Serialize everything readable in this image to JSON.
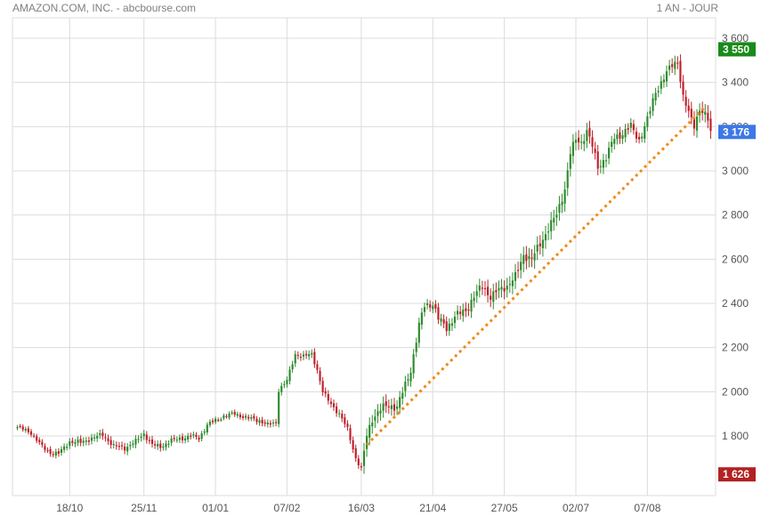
{
  "header": {
    "left_label": "AMAZON.COM, INC. - abcbourse.com",
    "right_label": "1 AN - JOUR"
  },
  "colors": {
    "up": "#2e8b2e",
    "down": "#c0202a",
    "grid": "#dcdcdc",
    "trend": "#f08a1c",
    "badge_high": "#1a8a1a",
    "badge_last": "#3c78e6",
    "badge_low": "#b22222"
  },
  "chart_data": {
    "type": "candlestick",
    "title": "",
    "ylim": [
      1530,
      3640
    ],
    "y_ticks": [
      1800,
      2000,
      2200,
      2400,
      2600,
      2800,
      3000,
      3200,
      3400,
      3600
    ],
    "y_tick_labels": [
      "1 800",
      "2 000",
      "2 200",
      "2 400",
      "2 600",
      "2 800",
      "3 000",
      "3 200",
      "3 400",
      "3 600"
    ],
    "x_ticks": [
      {
        "label": "18/10",
        "index": 19
      },
      {
        "label": "25/11",
        "index": 46
      },
      {
        "label": "01/01",
        "index": 72
      },
      {
        "label": "07/02",
        "index": 98
      },
      {
        "label": "16/03",
        "index": 125
      },
      {
        "label": "21/04",
        "index": 151
      },
      {
        "label": "27/05",
        "index": 177
      },
      {
        "label": "02/07",
        "index": 203
      },
      {
        "label": "07/08",
        "index": 229
      }
    ],
    "count": 253,
    "anchors": [
      [
        0,
        1840
      ],
      [
        5,
        1815
      ],
      [
        9,
        1750
      ],
      [
        12,
        1725
      ],
      [
        15,
        1720
      ],
      [
        19,
        1775
      ],
      [
        23,
        1770
      ],
      [
        27,
        1790
      ],
      [
        31,
        1805
      ],
      [
        35,
        1755
      ],
      [
        39,
        1745
      ],
      [
        43,
        1775
      ],
      [
        46,
        1810
      ],
      [
        49,
        1760
      ],
      [
        52,
        1750
      ],
      [
        56,
        1780
      ],
      [
        60,
        1790
      ],
      [
        63,
        1800
      ],
      [
        66,
        1790
      ],
      [
        69,
        1850
      ],
      [
        72,
        1870
      ],
      [
        75,
        1890
      ],
      [
        79,
        1900
      ],
      [
        84,
        1880
      ],
      [
        88,
        1870
      ],
      [
        91,
        1850
      ],
      [
        94,
        1860
      ],
      [
        95,
        2010
      ],
      [
        98,
        2050
      ],
      [
        101,
        2170
      ],
      [
        104,
        2160
      ],
      [
        107,
        2170
      ],
      [
        109,
        2100
      ],
      [
        111,
        2000
      ],
      [
        113,
        1960
      ],
      [
        115,
        1930
      ],
      [
        117,
        1900
      ],
      [
        120,
        1830
      ],
      [
        123,
        1700
      ],
      [
        125,
        1650
      ],
      [
        127,
        1800
      ],
      [
        129,
        1880
      ],
      [
        132,
        1920
      ],
      [
        135,
        1940
      ],
      [
        138,
        1930
      ],
      [
        141,
        2030
      ],
      [
        143,
        2100
      ],
      [
        146,
        2300
      ],
      [
        148,
        2390
      ],
      [
        151,
        2400
      ],
      [
        153,
        2330
      ],
      [
        156,
        2290
      ],
      [
        159,
        2340
      ],
      [
        163,
        2370
      ],
      [
        166,
        2430
      ],
      [
        169,
        2480
      ],
      [
        172,
        2430
      ],
      [
        175,
        2460
      ],
      [
        178,
        2480
      ],
      [
        181,
        2520
      ],
      [
        184,
        2620
      ],
      [
        187,
        2600
      ],
      [
        190,
        2670
      ],
      [
        193,
        2740
      ],
      [
        196,
        2800
      ],
      [
        199,
        2920
      ],
      [
        201,
        3080
      ],
      [
        203,
        3140
      ],
      [
        205,
        3130
      ],
      [
        207,
        3180
      ],
      [
        209,
        3110
      ],
      [
        211,
        3020
      ],
      [
        214,
        3060
      ],
      [
        217,
        3150
      ],
      [
        220,
        3170
      ],
      [
        223,
        3200
      ],
      [
        226,
        3140
      ],
      [
        229,
        3230
      ],
      [
        232,
        3360
      ],
      [
        235,
        3420
      ],
      [
        238,
        3480
      ],
      [
        240,
        3500
      ],
      [
        242,
        3330
      ],
      [
        244,
        3260
      ],
      [
        246,
        3210
      ],
      [
        248,
        3280
      ],
      [
        251,
        3230
      ],
      [
        252,
        3176
      ]
    ],
    "last_value_label": "3 176",
    "high_value_label": "3 550",
    "low_value_label": "1 626",
    "high_value": 3550,
    "last_value": 3176,
    "low_value": 1626,
    "trendline": {
      "from": {
        "index": 127,
        "value": 1760
      },
      "to": {
        "index": 250,
        "value": 3290
      }
    }
  }
}
